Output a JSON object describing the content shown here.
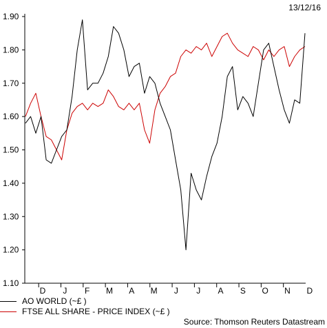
{
  "header": {
    "date": "13/12/16"
  },
  "source": "Source: Thomson Reuters Datastream",
  "chart_data": {
    "type": "line",
    "title": "",
    "xlabel": "",
    "ylabel": "",
    "ylim": [
      1.1,
      1.9
    ],
    "yticks": [
      "1.90",
      "1.80",
      "1.70",
      "1.60",
      "1.50",
      "1.40",
      "1.30",
      "1.20",
      "1.10"
    ],
    "ytick_values": [
      1.9,
      1.8,
      1.7,
      1.6,
      1.5,
      1.4,
      1.3,
      1.2,
      1.1
    ],
    "xlabels": [
      "D",
      "J",
      "F",
      "M",
      "A",
      "M",
      "J",
      "J",
      "A",
      "S",
      "O",
      "N",
      "D"
    ],
    "legend_placement": "bottom-left",
    "grid": false,
    "x": [
      0,
      1,
      2,
      3,
      4,
      5,
      6,
      7,
      8,
      9,
      10,
      11,
      12,
      13,
      14,
      15,
      16,
      17,
      18,
      19,
      20,
      21,
      22,
      23,
      24,
      25,
      26,
      27,
      28,
      29,
      30,
      31,
      32,
      33,
      34,
      35,
      36,
      37,
      38,
      39,
      40,
      41,
      42,
      43,
      44,
      45,
      46,
      47,
      48,
      49,
      50,
      51,
      52,
      53,
      54
    ],
    "series": [
      {
        "name": "AO WORLD (~£ )",
        "color": "#000000",
        "values": [
          1.58,
          1.6,
          1.55,
          1.6,
          1.47,
          1.46,
          1.5,
          1.54,
          1.56,
          1.66,
          1.8,
          1.89,
          1.68,
          1.7,
          1.7,
          1.73,
          1.78,
          1.87,
          1.85,
          1.8,
          1.72,
          1.75,
          1.76,
          1.67,
          1.72,
          1.7,
          1.64,
          1.6,
          1.56,
          1.47,
          1.38,
          1.2,
          1.43,
          1.38,
          1.35,
          1.42,
          1.48,
          1.52,
          1.6,
          1.72,
          1.75,
          1.62,
          1.66,
          1.64,
          1.6,
          1.7,
          1.8,
          1.82,
          1.75,
          1.68,
          1.62,
          1.58,
          1.65,
          1.64,
          1.85
        ]
      },
      {
        "name": "FTSE ALL SHARE - PRICE INDEX (~£ )",
        "color": "#cc0000",
        "values": [
          1.6,
          1.64,
          1.67,
          1.6,
          1.54,
          1.53,
          1.5,
          1.47,
          1.56,
          1.61,
          1.63,
          1.64,
          1.62,
          1.64,
          1.63,
          1.64,
          1.68,
          1.66,
          1.63,
          1.62,
          1.64,
          1.62,
          1.64,
          1.56,
          1.52,
          1.62,
          1.67,
          1.69,
          1.72,
          1.73,
          1.78,
          1.8,
          1.79,
          1.81,
          1.8,
          1.82,
          1.78,
          1.81,
          1.84,
          1.85,
          1.82,
          1.8,
          1.79,
          1.78,
          1.81,
          1.8,
          1.77,
          1.8,
          1.78,
          1.8,
          1.81,
          1.75,
          1.78,
          1.8,
          1.81
        ]
      }
    ]
  }
}
